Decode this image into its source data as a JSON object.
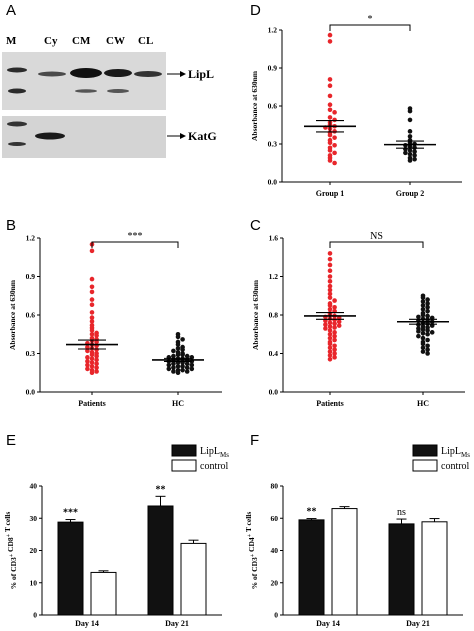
{
  "panels": {
    "A": {
      "letter": "A",
      "lanes": [
        "M",
        "Cy",
        "CM",
        "CW",
        "CL"
      ],
      "bands": [
        "LipL",
        "KatG"
      ]
    },
    "B": {
      "letter": "B"
    },
    "C": {
      "letter": "C"
    },
    "D": {
      "letter": "D"
    },
    "E": {
      "letter": "E"
    },
    "F": {
      "letter": "F"
    }
  },
  "chart_data": [
    {
      "id": "D",
      "type": "scatter",
      "ylabel": "Absorbance at 630nm",
      "ylim": [
        0,
        1.2
      ],
      "yticks": [
        "0.0",
        "0.3",
        "0.6",
        "0.9",
        "1.2"
      ],
      "categories": [
        "Group 1",
        "Group 2"
      ],
      "significance": "*",
      "series": [
        {
          "color": "#e8262b",
          "mean": 0.44,
          "sem": 0.045,
          "values": [
            1.16,
            1.11,
            0.81,
            0.76,
            0.68,
            0.61,
            0.57,
            0.55,
            0.51,
            0.49,
            0.47,
            0.45,
            0.44,
            0.43,
            0.42,
            0.4,
            0.39,
            0.37,
            0.35,
            0.33,
            0.31,
            0.29,
            0.27,
            0.25,
            0.23,
            0.21,
            0.19,
            0.17,
            0.15
          ]
        },
        {
          "color": "#111111",
          "mean": 0.295,
          "sem": 0.028,
          "values": [
            0.58,
            0.56,
            0.49,
            0.4,
            0.36,
            0.33,
            0.31,
            0.3,
            0.29,
            0.28,
            0.27,
            0.26,
            0.25,
            0.24,
            0.23,
            0.22,
            0.21,
            0.19,
            0.18,
            0.17
          ]
        }
      ]
    },
    {
      "id": "B",
      "type": "scatter",
      "ylabel": "Absorbance at 630nm",
      "ylim": [
        0,
        1.2
      ],
      "yticks": [
        "0.0",
        "0.3",
        "0.6",
        "0.9",
        "1.2"
      ],
      "categories": [
        "Patients",
        "HC"
      ],
      "significance": "***",
      "series": [
        {
          "color": "#e8262b",
          "mean": 0.37,
          "sem": 0.035,
          "values": [
            1.15,
            1.1,
            0.88,
            0.82,
            0.78,
            0.72,
            0.68,
            0.62,
            0.58,
            0.55,
            0.52,
            0.5,
            0.48,
            0.46,
            0.45,
            0.44,
            0.42,
            0.41,
            0.4,
            0.39,
            0.38,
            0.37,
            0.36,
            0.35,
            0.34,
            0.33,
            0.32,
            0.31,
            0.3,
            0.29,
            0.28,
            0.27,
            0.26,
            0.25,
            0.24,
            0.23,
            0.22,
            0.21,
            0.2,
            0.19,
            0.18,
            0.17,
            0.16,
            0.15
          ]
        },
        {
          "color": "#111111",
          "mean": 0.25,
          "sem": 0.012,
          "values": [
            0.45,
            0.43,
            0.41,
            0.39,
            0.37,
            0.35,
            0.34,
            0.33,
            0.32,
            0.31,
            0.3,
            0.29,
            0.29,
            0.28,
            0.28,
            0.27,
            0.27,
            0.26,
            0.26,
            0.25,
            0.25,
            0.24,
            0.24,
            0.23,
            0.23,
            0.22,
            0.22,
            0.21,
            0.21,
            0.2,
            0.2,
            0.19,
            0.19,
            0.18,
            0.18,
            0.17,
            0.17,
            0.16,
            0.16,
            0.15
          ]
        }
      ]
    },
    {
      "id": "C",
      "type": "scatter",
      "ylabel": "Absorbance at 630nm",
      "ylim": [
        0,
        1.6
      ],
      "yticks": [
        "0.0",
        "0.4",
        "0.8",
        "1.2",
        "1.6"
      ],
      "categories": [
        "Patients",
        "HC"
      ],
      "significance": "NS",
      "series": [
        {
          "color": "#e8262b",
          "mean": 0.79,
          "sem": 0.035,
          "values": [
            1.44,
            1.38,
            1.32,
            1.26,
            1.2,
            1.15,
            1.1,
            1.06,
            1.02,
            0.98,
            0.95,
            0.92,
            0.9,
            0.88,
            0.86,
            0.84,
            0.82,
            0.8,
            0.79,
            0.78,
            0.77,
            0.76,
            0.75,
            0.74,
            0.73,
            0.72,
            0.71,
            0.7,
            0.69,
            0.68,
            0.67,
            0.66,
            0.64,
            0.62,
            0.6,
            0.58,
            0.56,
            0.54,
            0.52,
            0.5,
            0.48,
            0.46,
            0.44,
            0.42,
            0.4,
            0.38,
            0.36,
            0.34
          ]
        },
        {
          "color": "#111111",
          "mean": 0.73,
          "sem": 0.025,
          "values": [
            1.0,
            0.98,
            0.96,
            0.94,
            0.92,
            0.9,
            0.88,
            0.86,
            0.84,
            0.82,
            0.8,
            0.79,
            0.78,
            0.77,
            0.76,
            0.75,
            0.74,
            0.73,
            0.72,
            0.71,
            0.7,
            0.69,
            0.68,
            0.67,
            0.66,
            0.65,
            0.64,
            0.63,
            0.62,
            0.61,
            0.6,
            0.58,
            0.56,
            0.54,
            0.52,
            0.5,
            0.48,
            0.46,
            0.44,
            0.42,
            0.4
          ]
        }
      ]
    },
    {
      "id": "E",
      "type": "bar",
      "ylabel": "% of CD3+ CD8+ T cells",
      "ylim": [
        0,
        40
      ],
      "yticks": [
        "0",
        "10",
        "20",
        "30",
        "40"
      ],
      "categories": [
        "Day 14",
        "Day 21"
      ],
      "legend_position": "top-right",
      "series": [
        {
          "name": "LipLMs",
          "color": "#111111",
          "values": [
            28.8,
            33.8
          ],
          "errors": [
            0.8,
            3.0
          ]
        },
        {
          "name": "control",
          "color": "#ffffff",
          "values": [
            13.2,
            22.2
          ],
          "errors": [
            0.5,
            1.0
          ]
        }
      ],
      "significance": [
        "***",
        "**"
      ]
    },
    {
      "id": "F",
      "type": "bar",
      "ylabel": "% of CD3+ CD4+ T cells",
      "ylim": [
        0,
        80
      ],
      "yticks": [
        "0",
        "20",
        "40",
        "60",
        "80"
      ],
      "categories": [
        "Day 14",
        "Day 21"
      ],
      "legend_position": "top-right",
      "series": [
        {
          "name": "LipLMs",
          "color": "#111111",
          "values": [
            59.0,
            56.5
          ],
          "errors": [
            0.8,
            3.0
          ]
        },
        {
          "name": "control",
          "color": "#ffffff",
          "values": [
            66.0,
            57.8
          ],
          "errors": [
            1.2,
            2.0
          ]
        }
      ],
      "significance": [
        "**",
        "ns"
      ]
    }
  ]
}
